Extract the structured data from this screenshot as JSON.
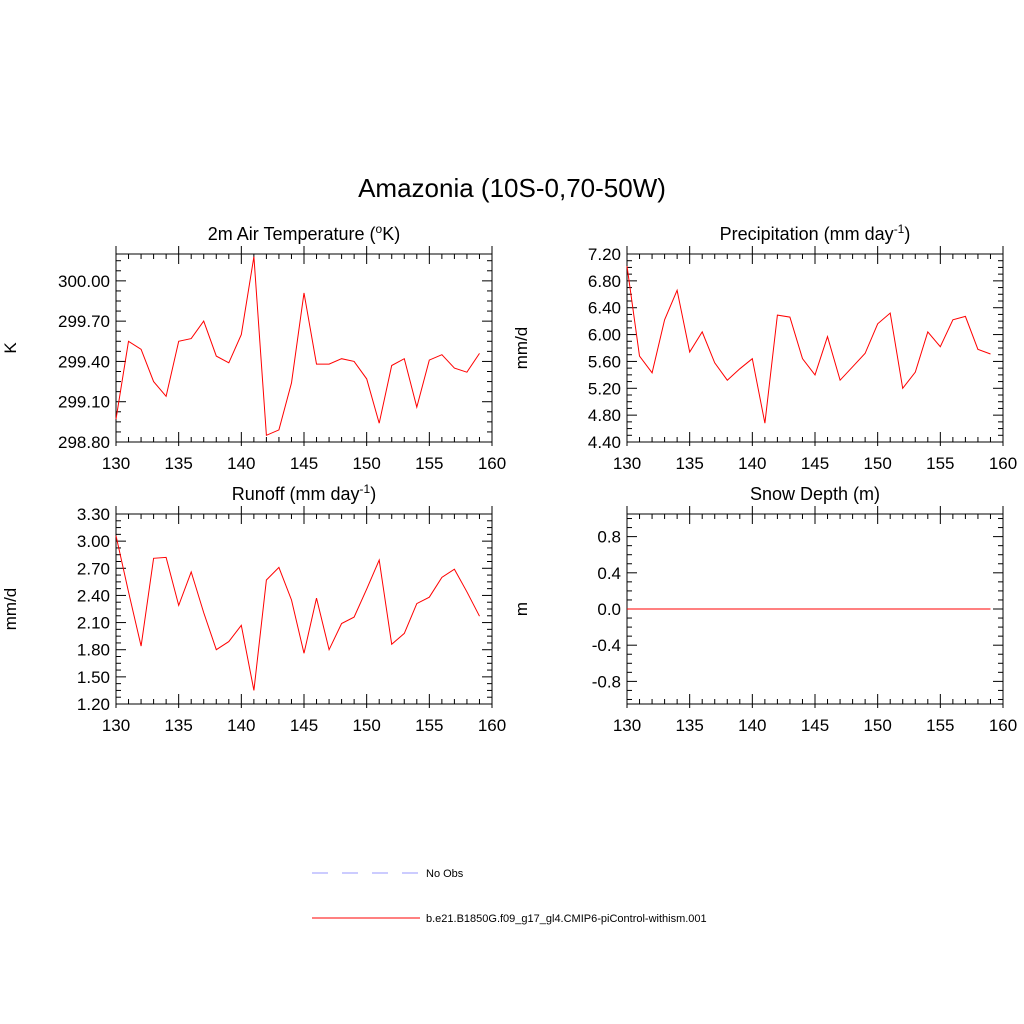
{
  "title": "Amazonia (10S-0,70-50W)",
  "legend": [
    {
      "label": "No Obs",
      "color": "#9999ff",
      "dash": "dashed"
    },
    {
      "label": "b.e21.B1850G.f09_g17_gl4.CMIP6-piControl-withism.001",
      "color": "#ff0000",
      "dash": "solid"
    }
  ],
  "chart_data": [
    {
      "type": "line",
      "title": {
        "main": "2m Air Temperature (",
        "sup": "o",
        "rest": "K)"
      },
      "ylabel": "K",
      "xlim": [
        130,
        160
      ],
      "ylim": [
        298.8,
        300.2
      ],
      "xticks": [
        130,
        135,
        140,
        145,
        150,
        155,
        160
      ],
      "yticks": [
        "298.80",
        "299.10",
        "299.40",
        "299.70",
        "300.00"
      ],
      "color": "#ff0000",
      "x": [
        130,
        131,
        132,
        133,
        134,
        135,
        136,
        137,
        138,
        139,
        140,
        141,
        142,
        143,
        144,
        145,
        146,
        147,
        148,
        149,
        150,
        151,
        152,
        153,
        154,
        155,
        156,
        157,
        158,
        159
      ],
      "values": [
        298.97,
        299.55,
        299.49,
        299.25,
        299.14,
        299.55,
        299.57,
        299.7,
        299.44,
        299.39,
        299.6,
        300.18,
        298.85,
        298.89,
        299.24,
        299.91,
        299.38,
        299.38,
        299.42,
        299.4,
        299.27,
        298.94,
        299.37,
        299.42,
        299.06,
        299.41,
        299.45,
        299.35,
        299.32,
        299.46
      ]
    },
    {
      "type": "line",
      "title": {
        "main": "Precipitation (mm day",
        "sup": "-1",
        "rest": ")"
      },
      "ylabel": "mm/d",
      "xlim": [
        130,
        160
      ],
      "ylim": [
        4.4,
        7.2
      ],
      "xticks": [
        130,
        135,
        140,
        145,
        150,
        155,
        160
      ],
      "yticks": [
        "4.40",
        "4.80",
        "5.20",
        "5.60",
        "6.00",
        "6.40",
        "6.80",
        "7.20"
      ],
      "color": "#ff0000",
      "x": [
        130,
        131,
        132,
        133,
        134,
        135,
        136,
        137,
        138,
        139,
        140,
        141,
        142,
        143,
        144,
        145,
        146,
        147,
        148,
        149,
        150,
        151,
        152,
        153,
        154,
        155,
        156,
        157,
        158,
        159
      ],
      "values": [
        7.02,
        5.68,
        5.43,
        6.22,
        6.66,
        5.74,
        6.04,
        5.58,
        5.32,
        5.49,
        5.64,
        4.68,
        6.29,
        6.26,
        5.64,
        5.4,
        5.97,
        5.32,
        5.52,
        5.72,
        6.16,
        6.32,
        5.2,
        5.44,
        6.04,
        5.82,
        6.22,
        6.27,
        5.78,
        5.71
      ]
    },
    {
      "type": "line",
      "title": {
        "main": "Runoff (mm day",
        "sup": "-1",
        "rest": ")"
      },
      "ylabel": "mm/d",
      "xlim": [
        130,
        160
      ],
      "ylim": [
        1.2,
        3.3
      ],
      "xticks": [
        130,
        135,
        140,
        145,
        150,
        155,
        160
      ],
      "yticks": [
        "1.20",
        "1.50",
        "1.80",
        "2.10",
        "2.40",
        "2.70",
        "3.00",
        "3.30"
      ],
      "color": "#ff0000",
      "x": [
        130,
        131,
        132,
        133,
        134,
        135,
        136,
        137,
        138,
        139,
        140,
        141,
        142,
        143,
        144,
        145,
        146,
        147,
        148,
        149,
        150,
        151,
        152,
        153,
        154,
        155,
        156,
        157,
        158,
        159
      ],
      "values": [
        3.06,
        2.44,
        1.84,
        2.81,
        2.82,
        2.29,
        2.66,
        2.21,
        1.8,
        1.89,
        2.07,
        1.35,
        2.57,
        2.71,
        2.35,
        1.76,
        2.37,
        1.8,
        2.09,
        2.16,
        2.47,
        2.79,
        1.86,
        1.98,
        2.31,
        2.38,
        2.6,
        2.69,
        2.44,
        2.17
      ]
    },
    {
      "type": "line",
      "title": {
        "main": "Snow Depth (m)",
        "sup": "",
        "rest": ""
      },
      "ylabel": "m",
      "xlim": [
        130,
        160
      ],
      "ylim": [
        -1.05,
        1.05
      ],
      "xticks": [
        130,
        135,
        140,
        145,
        150,
        155,
        160
      ],
      "yticks": [
        "-0.8",
        "-0.4",
        "0.0",
        "0.4",
        "0.8"
      ],
      "color": "#ff0000",
      "x": [
        130,
        131,
        132,
        133,
        134,
        135,
        136,
        137,
        138,
        139,
        140,
        141,
        142,
        143,
        144,
        145,
        146,
        147,
        148,
        149,
        150,
        151,
        152,
        153,
        154,
        155,
        156,
        157,
        158,
        159
      ],
      "values": [
        0,
        0,
        0,
        0,
        0,
        0,
        0,
        0,
        0,
        0,
        0,
        0,
        0,
        0,
        0,
        0,
        0,
        0,
        0,
        0,
        0,
        0,
        0,
        0,
        0,
        0,
        0,
        0,
        0,
        0
      ]
    }
  ]
}
